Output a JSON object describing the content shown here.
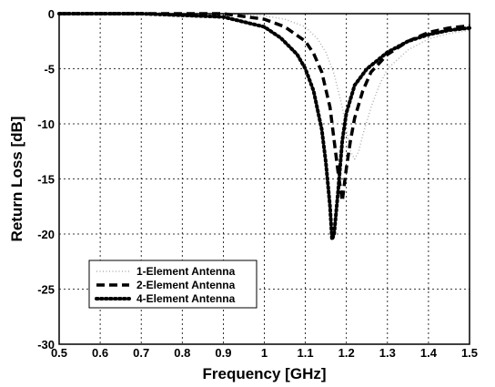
{
  "chart_data": {
    "type": "line",
    "title": "",
    "xlabel": "Frequency [GHz]",
    "ylabel": "Return Loss [dB]",
    "xlim": [
      0.5,
      1.5
    ],
    "ylim": [
      -30,
      0
    ],
    "xticks": [
      0.5,
      0.6,
      0.7,
      0.8,
      0.9,
      1.0,
      1.1,
      1.2,
      1.3,
      1.4,
      1.5
    ],
    "xtick_labels": [
      "0.5",
      "0.6",
      "0.7",
      "0.8",
      "0.9",
      "1",
      "1.1",
      "1.2",
      "1.3",
      "1.4",
      "1.5"
    ],
    "yticks": [
      0,
      -5,
      -10,
      -15,
      -20,
      -25,
      -30
    ],
    "ytick_labels": [
      "0",
      "-5",
      "-10",
      "-15",
      "-20",
      "-25",
      "-30"
    ],
    "grid": true,
    "legend_position": "bottom-left",
    "series": [
      {
        "name": "1-Element Antenna",
        "style": "dotted-light",
        "color": "#b0b0b0",
        "x": [
          0.5,
          0.7,
          0.9,
          1.0,
          1.05,
          1.1,
          1.13,
          1.15,
          1.17,
          1.19,
          1.2,
          1.21,
          1.22,
          1.23,
          1.24,
          1.26,
          1.28,
          1.3,
          1.35,
          1.4,
          1.45,
          1.5
        ],
        "y": [
          0,
          0,
          0,
          -0.2,
          -0.5,
          -1.2,
          -2.3,
          -3.5,
          -5.5,
          -8.5,
          -10.5,
          -12.5,
          -13.2,
          -12.5,
          -11,
          -8.5,
          -6.5,
          -5,
          -3.3,
          -2.3,
          -1.8,
          -1.5
        ]
      },
      {
        "name": "2-Element Antenna",
        "style": "dashed",
        "color": "#000000",
        "x": [
          0.5,
          0.7,
          0.9,
          1.0,
          1.05,
          1.1,
          1.12,
          1.14,
          1.16,
          1.17,
          1.18,
          1.19,
          1.2,
          1.21,
          1.22,
          1.24,
          1.26,
          1.3,
          1.35,
          1.4,
          1.45,
          1.5
        ],
        "y": [
          0,
          0,
          0,
          -0.5,
          -1.2,
          -2.5,
          -3.6,
          -5.3,
          -8.5,
          -11.5,
          -14.5,
          -17,
          -14,
          -11.5,
          -9.5,
          -7,
          -5.3,
          -3.7,
          -2.5,
          -1.7,
          -1.3,
          -1.1
        ]
      },
      {
        "name": "4-Element Antenna",
        "style": "dotted",
        "color": "#000000",
        "x": [
          0.5,
          0.7,
          0.9,
          1.0,
          1.04,
          1.08,
          1.1,
          1.12,
          1.14,
          1.15,
          1.16,
          1.165,
          1.17,
          1.18,
          1.19,
          1.2,
          1.22,
          1.25,
          1.3,
          1.35,
          1.4,
          1.45,
          1.5
        ],
        "y": [
          0,
          0,
          -0.3,
          -1.2,
          -2.2,
          -3.7,
          -5,
          -7,
          -10.5,
          -13.5,
          -17.5,
          -20.5,
          -20,
          -16,
          -11.5,
          -9,
          -6.5,
          -5,
          -3.5,
          -2.5,
          -1.9,
          -1.5,
          -1.3
        ]
      }
    ]
  }
}
